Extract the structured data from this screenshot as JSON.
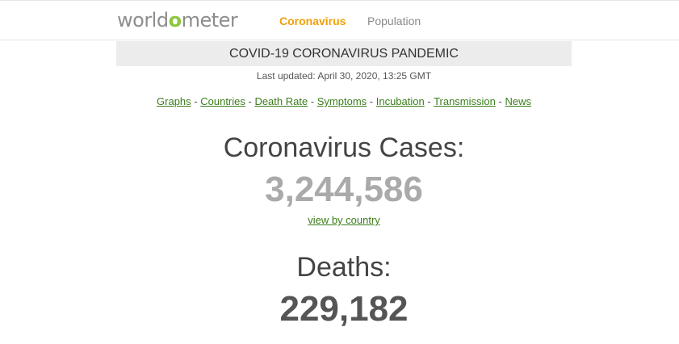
{
  "header": {
    "logo_prefix": "world",
    "logo_mark": "o",
    "logo_suffix": "meter",
    "nav": {
      "coronavirus": "Coronavirus",
      "population": "Population"
    }
  },
  "banner": {
    "title": "COVID-19 CORONAVIRUS PANDEMIC"
  },
  "last_updated": "Last updated: April 30, 2020, 13:25 GMT",
  "links": [
    {
      "label": "Graphs"
    },
    {
      "label": "Countries"
    },
    {
      "label": "Death Rate"
    },
    {
      "label": "Symptoms"
    },
    {
      "label": "Incubation"
    },
    {
      "label": "Transmission"
    },
    {
      "label": "News"
    }
  ],
  "link_separator": " - ",
  "cases": {
    "label": "Coronavirus Cases:",
    "value": "3,244,586",
    "view_link": "view by country"
  },
  "deaths": {
    "label": "Deaths:",
    "value": "229,182"
  },
  "colors": {
    "accent_orange": "#f0a00a",
    "link_green": "#3b7d1a",
    "logo_green": "#8dc63f",
    "banner_bg": "#ececec"
  }
}
